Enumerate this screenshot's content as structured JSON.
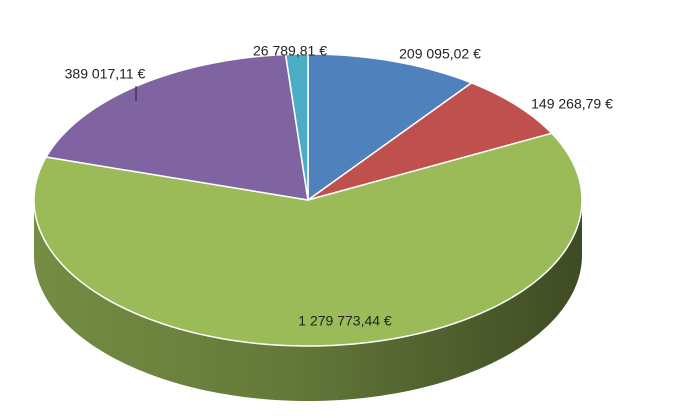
{
  "chart_data": {
    "type": "pie",
    "values": [
      209095.02,
      149268.79,
      1279773.44,
      389017.11,
      26789.81
    ],
    "value_labels": [
      "209 095,02 €",
      "149 268,79 €",
      "1 279 773,44 €",
      "389 017,11 €",
      "26 789,81 €"
    ],
    "colors": [
      "#4f81bd",
      "#c0504d",
      "#9bbb59",
      "#8064a2",
      "#4bacc6"
    ]
  }
}
